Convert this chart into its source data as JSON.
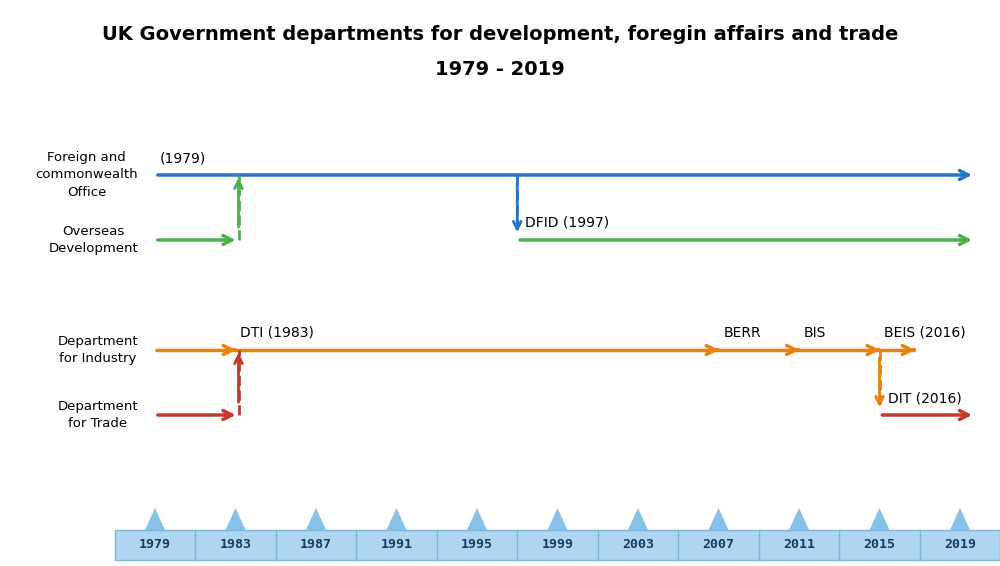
{
  "title_line1": "UK Government departments for development, foregin affairs and trade",
  "title_line2": "1979 - 2019",
  "year_start": 1979,
  "year_end": 2019,
  "timeline_years": [
    1979,
    1983,
    1987,
    1991,
    1995,
    1999,
    2003,
    2007,
    2011,
    2015,
    2019
  ],
  "colors": {
    "blue": "#2874C5",
    "green": "#4CAF50",
    "orange": "#E8820C",
    "red": "#C0392B",
    "timeline_bg": "#AED6F1",
    "timeline_cell_border": "#7FB3D3",
    "timeline_tick": "#85C1E9",
    "year_text": "#1A3A5C"
  },
  "annotations": {
    "fco_label": "Foreign and\ncommonwealth\nOffice",
    "fco_year": "(1979)",
    "od_label": "Overseas\nDevelopment",
    "dfid_label": "DFID (1997)",
    "dfi_label": "Department\nfor Industry",
    "dti_label": "DTI (1983)",
    "berr_label": "BERR",
    "bis_label": "BIS",
    "beis_label": "BEIS (2016)",
    "dft_label": "Department\nfor Trade",
    "dit_label": "DIT (2016)"
  }
}
